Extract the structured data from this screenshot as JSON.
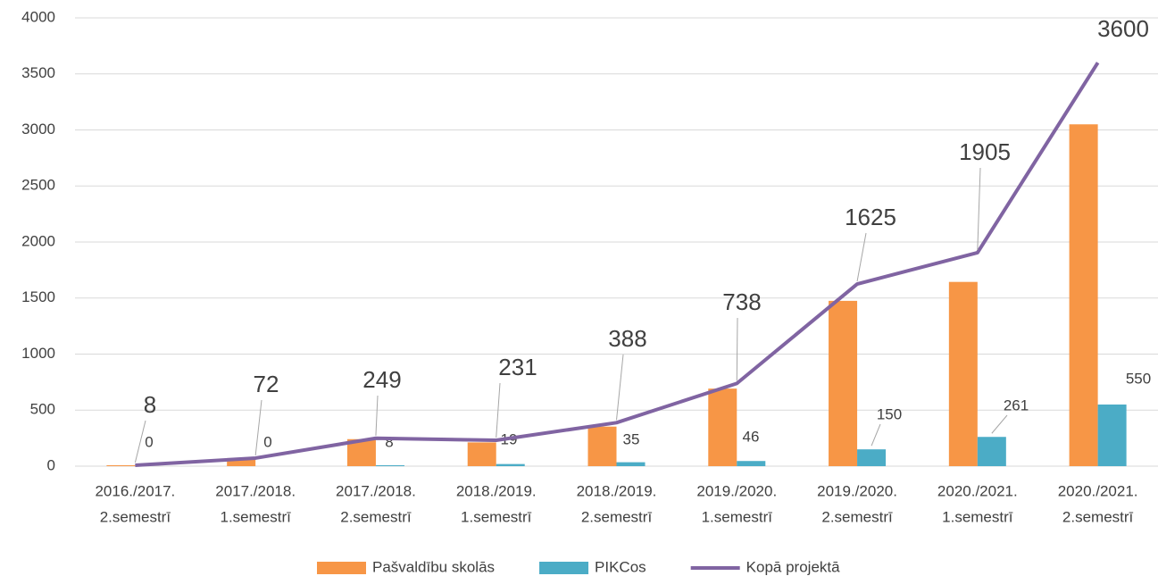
{
  "chart_data": {
    "type": "bar",
    "categories": [
      [
        "2016./2017.",
        "2.semestrī"
      ],
      [
        "2017./2018.",
        "1.semestrī"
      ],
      [
        "2017./2018.",
        "2.semestrī"
      ],
      [
        "2018./2019.",
        "1.semestrī"
      ],
      [
        "2018./2019.",
        "2.semestrī"
      ],
      [
        "2019./2020.",
        "1.semestrī"
      ],
      [
        "2019./2020.",
        "2.semestrī"
      ],
      [
        "2020./2021.",
        "1.semestrī"
      ],
      [
        "2020./2021.",
        "2.semestrī"
      ]
    ],
    "series": [
      {
        "name": "Pašvaldību skolās",
        "color": "#f79646",
        "values": [
          8,
          72,
          241,
          212,
          353,
          692,
          1475,
          1644,
          3050
        ]
      },
      {
        "name": "PIKCos",
        "color": "#4bacc6",
        "values": [
          0,
          0,
          8,
          19,
          35,
          46,
          150,
          261,
          550
        ],
        "data_labels": true
      },
      {
        "name": "Kopā projektā",
        "type": "line",
        "color": "#8064a2",
        "values": [
          8,
          72,
          249,
          231,
          388,
          738,
          1625,
          1905,
          3600
        ],
        "data_labels": true
      }
    ],
    "ylim": [
      0,
      4000
    ],
    "yticks": [
      0,
      500,
      1000,
      1500,
      2000,
      2500,
      3000,
      3500,
      4000
    ],
    "grid": true,
    "legend": "bottom"
  }
}
